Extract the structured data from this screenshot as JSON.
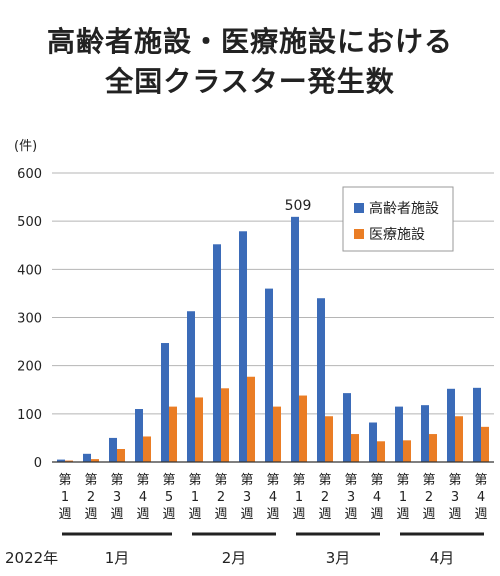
{
  "title_line1": "高齢者施設・医療施設における",
  "title_line2": "全国クラスター発生数",
  "unit": "(件)",
  "year_label": "2022年",
  "annotation": "509",
  "colors": {
    "elderly": "#3b6bb8",
    "medical": "#ea7d25"
  },
  "chart_data": {
    "type": "bar",
    "title": "高齢者施設・医療施設における全国クラスター発生数",
    "ylabel": "(件)",
    "ylim": [
      0,
      600
    ],
    "yticks": [
      "0",
      "100",
      "200",
      "300",
      "400",
      "500",
      "600"
    ],
    "grid": true,
    "legend_position": "top-right",
    "categories": [
      "1月第1週",
      "1月第2週",
      "1月第3週",
      "1月第4週",
      "1月第5週",
      "2月第1週",
      "2月第2週",
      "2月第3週",
      "2月第4週",
      "3月第1週",
      "3月第2週",
      "3月第3週",
      "3月第4週",
      "4月第1週",
      "4月第2週",
      "4月第3週",
      "4月第4週"
    ],
    "week_labels": [
      [
        "第",
        "1",
        "週"
      ],
      [
        "第",
        "2",
        "週"
      ],
      [
        "第",
        "3",
        "週"
      ],
      [
        "第",
        "4",
        "週"
      ],
      [
        "第",
        "5",
        "週"
      ],
      [
        "第",
        "1",
        "週"
      ],
      [
        "第",
        "2",
        "週"
      ],
      [
        "第",
        "3",
        "週"
      ],
      [
        "第",
        "4",
        "週"
      ],
      [
        "第",
        "1",
        "週"
      ],
      [
        "第",
        "2",
        "週"
      ],
      [
        "第",
        "3",
        "週"
      ],
      [
        "第",
        "4",
        "週"
      ],
      [
        "第",
        "1",
        "週"
      ],
      [
        "第",
        "2",
        "週"
      ],
      [
        "第",
        "3",
        "週"
      ],
      [
        "第",
        "4",
        "週"
      ]
    ],
    "months": [
      {
        "label": "1月",
        "weeks": 5
      },
      {
        "label": "2月",
        "weeks": 4
      },
      {
        "label": "3月",
        "weeks": 4
      },
      {
        "label": "4月",
        "weeks": 4
      }
    ],
    "series": [
      {
        "name": "高齢者施設",
        "values": [
          5,
          17,
          50,
          110,
          247,
          313,
          452,
          479,
          360,
          509,
          340,
          143,
          82,
          115,
          118,
          152,
          154
        ]
      },
      {
        "name": "医療施設",
        "values": [
          3,
          6,
          27,
          53,
          115,
          134,
          153,
          177,
          115,
          138,
          95,
          58,
          43,
          45,
          58,
          95,
          73
        ]
      }
    ]
  }
}
